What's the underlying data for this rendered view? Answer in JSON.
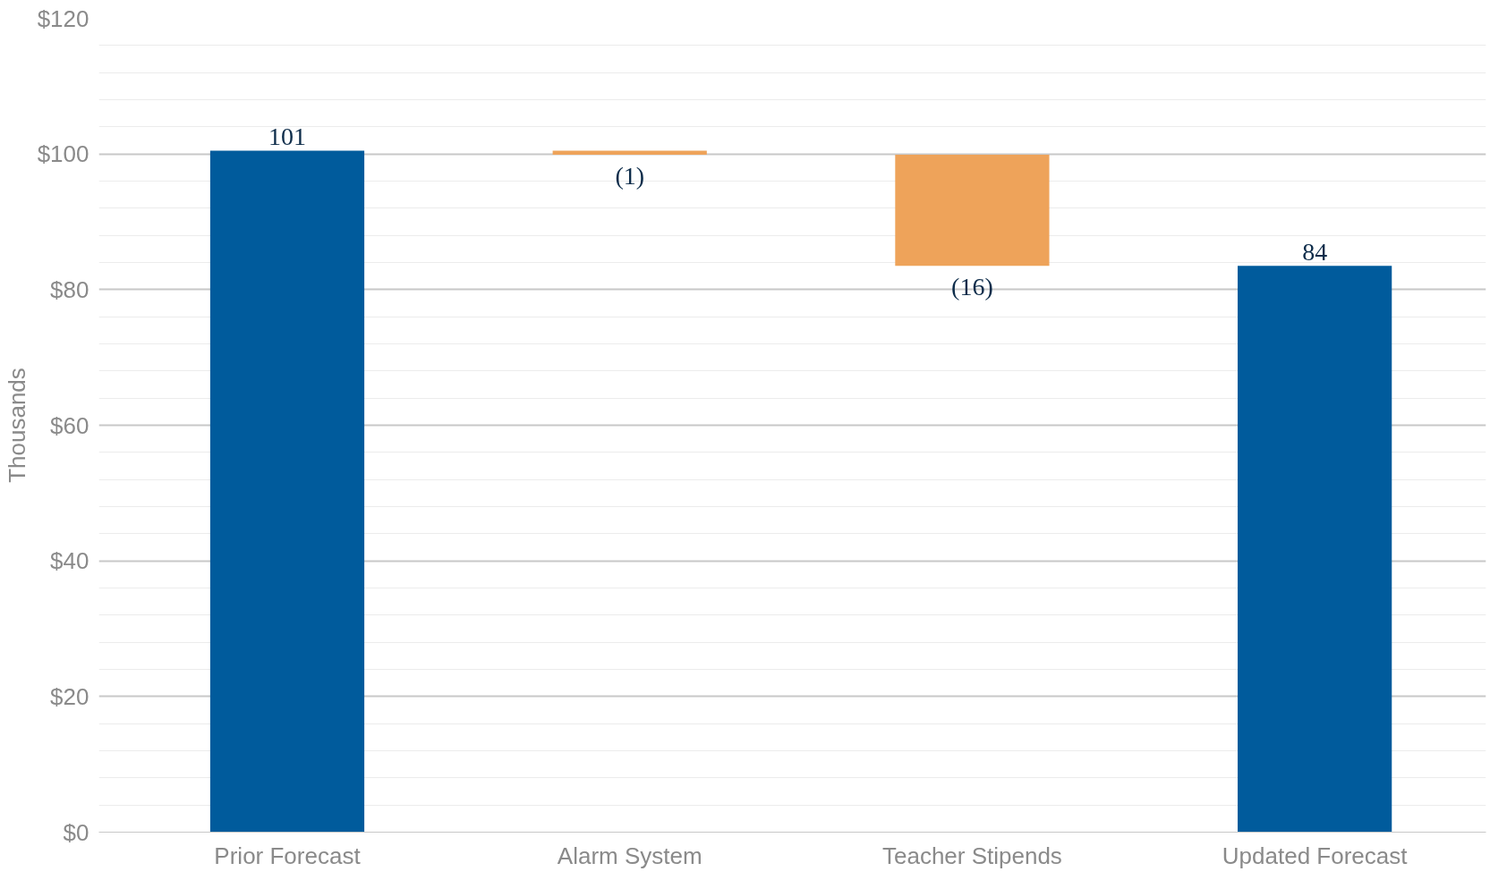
{
  "chart_data": {
    "type": "bar",
    "ylabel": "Thousands",
    "categories": [
      "Prior Forecast",
      "Alarm System",
      "Teacher Stipends",
      "Updated Forecast"
    ],
    "values": [
      100.5,
      -0.6,
      -16.4,
      83.5
    ],
    "base": [
      0,
      100.5,
      99.9,
      0
    ],
    "colors": [
      "#005b9c",
      "#eea35a",
      "#eea35a",
      "#005b9c"
    ],
    "value_labels": [
      "101",
      "(1)",
      "(16)",
      "84"
    ],
    "ylim": [
      0,
      120
    ],
    "yticks": [
      {
        "value": 0,
        "label": "$0"
      },
      {
        "value": 4,
        "label": null
      },
      {
        "value": 8,
        "label": null
      },
      {
        "value": 12,
        "label": null
      },
      {
        "value": 16,
        "label": null
      },
      {
        "value": 20,
        "label": "$20"
      },
      {
        "value": 24,
        "label": null
      },
      {
        "value": 28,
        "label": null
      },
      {
        "value": 32,
        "label": null
      },
      {
        "value": 36,
        "label": null
      },
      {
        "value": 40,
        "label": "$40"
      },
      {
        "value": 44,
        "label": null
      },
      {
        "value": 48,
        "label": null
      },
      {
        "value": 52,
        "label": null
      },
      {
        "value": 56,
        "label": null
      },
      {
        "value": 60,
        "label": "$60"
      },
      {
        "value": 64,
        "label": null
      },
      {
        "value": 68,
        "label": null
      },
      {
        "value": 72,
        "label": null
      },
      {
        "value": 76,
        "label": null
      },
      {
        "value": 80,
        "label": "$80"
      },
      {
        "value": 84,
        "label": null
      },
      {
        "value": 88,
        "label": null
      },
      {
        "value": 92,
        "label": null
      },
      {
        "value": 96,
        "label": null
      },
      {
        "value": 100,
        "label": "$100"
      },
      {
        "value": 104,
        "label": null
      },
      {
        "value": 108,
        "label": null
      },
      {
        "value": 112,
        "label": null
      },
      {
        "value": 116,
        "label": null
      },
      {
        "value": 120,
        "label": "$120"
      }
    ],
    "grid": "y"
  }
}
